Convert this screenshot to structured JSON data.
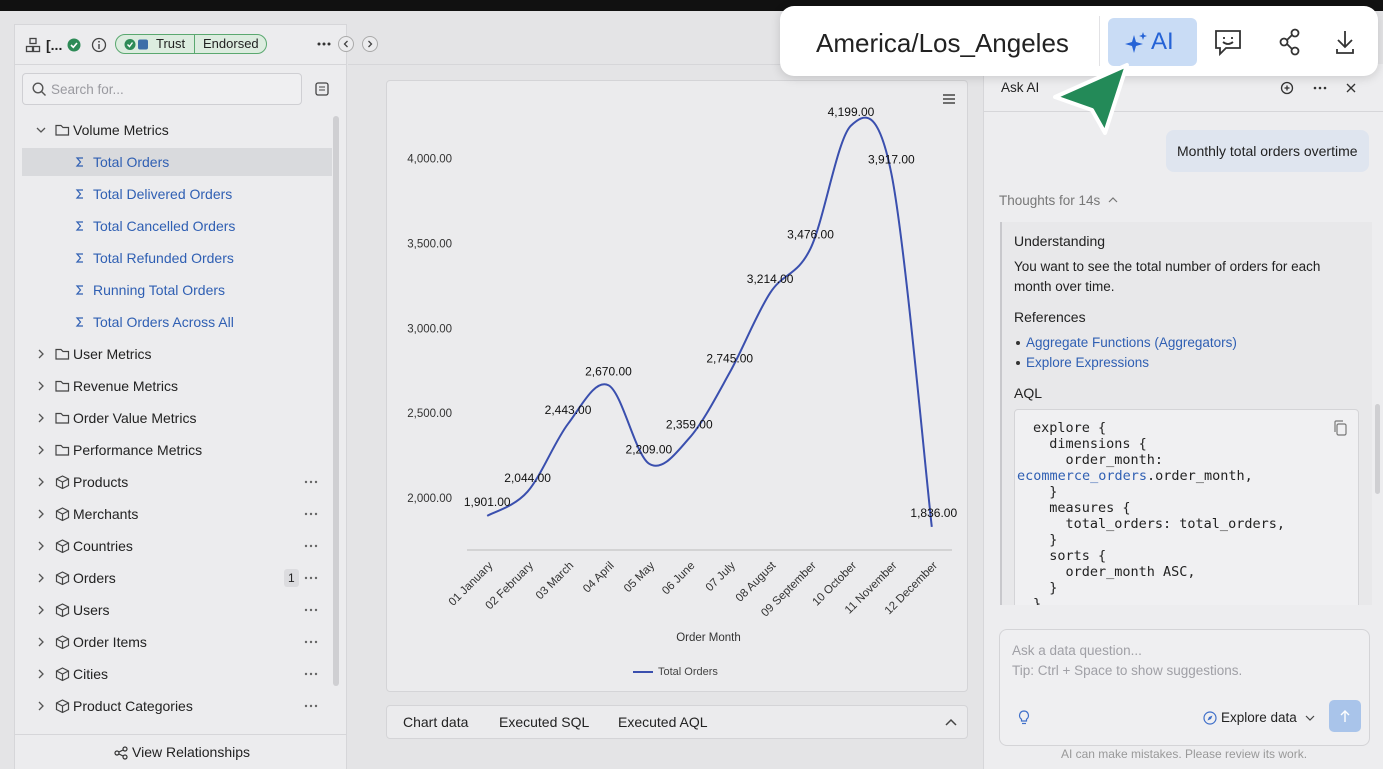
{
  "sidebar": {
    "title": "[...",
    "badges": [
      "Trust",
      "Endorsed"
    ],
    "search_placeholder": "Search for...",
    "tree": [
      {
        "label": "Volume Metrics",
        "kind": "folder",
        "open": true
      },
      {
        "label": "Total Orders",
        "kind": "measure",
        "selected": true
      },
      {
        "label": "Total Delivered Orders",
        "kind": "measure"
      },
      {
        "label": "Total Cancelled Orders",
        "kind": "measure"
      },
      {
        "label": "Total Refunded Orders",
        "kind": "measure"
      },
      {
        "label": "Running Total Orders",
        "kind": "measure"
      },
      {
        "label": "Total Orders Across All",
        "kind": "measure"
      },
      {
        "label": "User Metrics",
        "kind": "folder"
      },
      {
        "label": "Revenue Metrics",
        "kind": "folder"
      },
      {
        "label": "Order Value Metrics",
        "kind": "folder"
      },
      {
        "label": "Performance Metrics",
        "kind": "folder"
      },
      {
        "label": "Products",
        "kind": "model"
      },
      {
        "label": "Merchants",
        "kind": "model"
      },
      {
        "label": "Countries",
        "kind": "model"
      },
      {
        "label": "Orders",
        "kind": "model",
        "count": 1
      },
      {
        "label": "Users",
        "kind": "model"
      },
      {
        "label": "Order Items",
        "kind": "model"
      },
      {
        "label": "Cities",
        "kind": "model"
      },
      {
        "label": "Product Categories",
        "kind": "model"
      }
    ],
    "footer": "View Relationships"
  },
  "tabs": [
    "Chart data",
    "Executed SQL",
    "Executed AQL"
  ],
  "chart_data": {
    "type": "line",
    "categories": [
      "01 January",
      "02 February",
      "03 March",
      "04 April",
      "05 May",
      "06 June",
      "07 July",
      "08 August",
      "09 September",
      "10 October",
      "11 November",
      "12 December"
    ],
    "series": [
      {
        "name": "Total Orders",
        "color": "#3a4fae",
        "values": [
          1901,
          2044,
          2443,
          2670,
          2209,
          2359,
          2745,
          3214,
          3476,
          4199,
          3917,
          1836
        ],
        "value_labels": [
          "1,901.00",
          "2,044.00",
          "2,443.00",
          "2,670.00",
          "2,209.00",
          "2,359.00",
          "2,745.00",
          "3,214.00",
          "3,476.00",
          "4,199.00",
          "3,917.00",
          "1,836.00"
        ]
      }
    ],
    "ylim": [
      1700,
      4350
    ],
    "yticks": [
      {
        "value": 2000,
        "label": "2,000.00"
      },
      {
        "value": 2500,
        "label": "2,500.00"
      },
      {
        "value": 3000,
        "label": "3,000.00"
      },
      {
        "value": 3500,
        "label": "3,500.00"
      },
      {
        "value": 4000,
        "label": "4,000.00"
      }
    ],
    "x_label": "Order Month",
    "legend": "bottom",
    "grid": false
  },
  "assistant": {
    "title": "Ask AI",
    "user_message": "Monthly total orders overtime",
    "thoughts": "Thoughts for 14s",
    "understanding": {
      "heading": "Understanding",
      "text": "You want to see the total number of orders for each month over time."
    },
    "references": {
      "heading": "References",
      "links": [
        "Aggregate Functions (Aggregators)",
        "Explore Expressions"
      ]
    },
    "aql": {
      "heading": "AQL",
      "code": [
        "explore {",
        "  dimensions {",
        "    order_month:",
        {
          "link": "ecommerce_orders",
          "text": ".order_month,"
        },
        "  }",
        "  measures {",
        "    total_orders: total_orders,",
        "  }",
        "  sorts {",
        "    order_month ASC,",
        "  }",
        "}"
      ]
    },
    "input": {
      "placeholder": "Ask a data question...",
      "tip": "Tip: Ctrl + Space to show suggestions.",
      "mode": "Explore data"
    },
    "disclaimer": "AI can make mistakes. Please review its work."
  },
  "toolbar": {
    "timezone": "America/Los_Angeles",
    "ai_button": "AI"
  }
}
